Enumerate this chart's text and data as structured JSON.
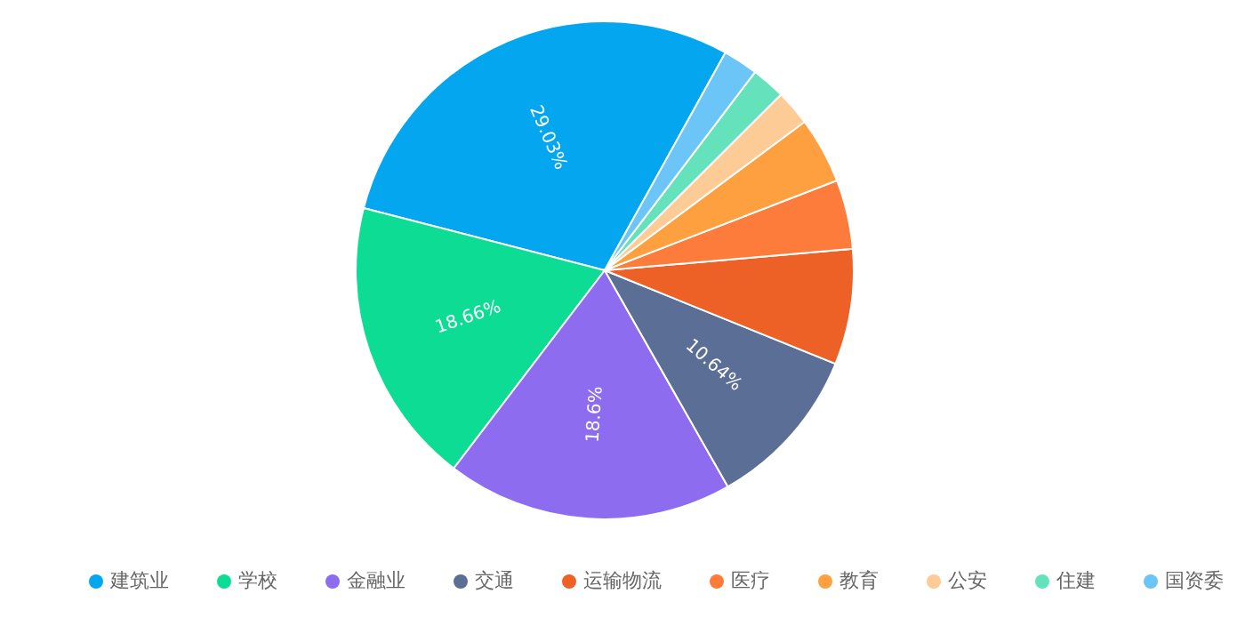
{
  "chart_data": {
    "type": "pie",
    "categories": [
      "建筑业",
      "学校",
      "金融业",
      "交通",
      "运输物流",
      "医疗",
      "教育",
      "公安",
      "住建",
      "国资委"
    ],
    "values": [
      29.03,
      18.66,
      18.6,
      10.64,
      7.5,
      4.5,
      4.3,
      2.3,
      2.2,
      2.27
    ],
    "colors": [
      "#05a6f0",
      "#0ddc94",
      "#8d6cf0",
      "#5a6e96",
      "#ee6126",
      "#fd7c3c",
      "#fea03f",
      "#fdcb96",
      "#64e2bb",
      "#6bc5f6"
    ],
    "value_labels": [
      "29.03%",
      "18.66%",
      "18.6%",
      "10.64%",
      null,
      null,
      null,
      null,
      null,
      null
    ],
    "legend": "bottom"
  }
}
